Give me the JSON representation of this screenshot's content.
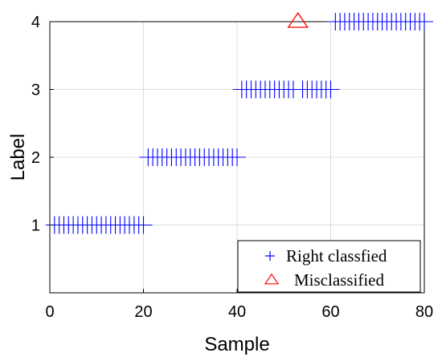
{
  "chart_data": {
    "type": "scatter",
    "xlabel": "Sample",
    "ylabel": "Label",
    "xlim": [
      0,
      80
    ],
    "ylim": [
      0,
      4
    ],
    "xticks": [
      0,
      20,
      40,
      60,
      80
    ],
    "yticks": [
      1,
      2,
      3,
      4
    ],
    "grid": true,
    "legend_position": "bottom-right",
    "series": [
      {
        "name": "Right classfied",
        "marker": "plus",
        "color": "#0000ff",
        "points": [
          [
            1,
            1
          ],
          [
            2,
            1
          ],
          [
            3,
            1
          ],
          [
            4,
            1
          ],
          [
            5,
            1
          ],
          [
            6,
            1
          ],
          [
            7,
            1
          ],
          [
            8,
            1
          ],
          [
            9,
            1
          ],
          [
            10,
            1
          ],
          [
            11,
            1
          ],
          [
            12,
            1
          ],
          [
            13,
            1
          ],
          [
            14,
            1
          ],
          [
            15,
            1
          ],
          [
            16,
            1
          ],
          [
            17,
            1
          ],
          [
            18,
            1
          ],
          [
            19,
            1
          ],
          [
            20,
            1
          ],
          [
            21,
            2
          ],
          [
            22,
            2
          ],
          [
            23,
            2
          ],
          [
            24,
            2
          ],
          [
            25,
            2
          ],
          [
            26,
            2
          ],
          [
            27,
            2
          ],
          [
            28,
            2
          ],
          [
            29,
            2
          ],
          [
            30,
            2
          ],
          [
            31,
            2
          ],
          [
            32,
            2
          ],
          [
            33,
            2
          ],
          [
            34,
            2
          ],
          [
            35,
            2
          ],
          [
            36,
            2
          ],
          [
            37,
            2
          ],
          [
            38,
            2
          ],
          [
            39,
            2
          ],
          [
            40,
            2
          ],
          [
            41,
            3
          ],
          [
            42,
            3
          ],
          [
            43,
            3
          ],
          [
            44,
            3
          ],
          [
            45,
            3
          ],
          [
            46,
            3
          ],
          [
            47,
            3
          ],
          [
            48,
            3
          ],
          [
            49,
            3
          ],
          [
            50,
            3
          ],
          [
            51,
            3
          ],
          [
            52,
            3
          ],
          [
            54,
            3
          ],
          [
            55,
            3
          ],
          [
            56,
            3
          ],
          [
            57,
            3
          ],
          [
            58,
            3
          ],
          [
            59,
            3
          ],
          [
            60,
            3
          ],
          [
            61,
            4
          ],
          [
            62,
            4
          ],
          [
            63,
            4
          ],
          [
            64,
            4
          ],
          [
            65,
            4
          ],
          [
            66,
            4
          ],
          [
            67,
            4
          ],
          [
            68,
            4
          ],
          [
            69,
            4
          ],
          [
            70,
            4
          ],
          [
            71,
            4
          ],
          [
            72,
            4
          ],
          [
            73,
            4
          ],
          [
            74,
            4
          ],
          [
            75,
            4
          ],
          [
            76,
            4
          ],
          [
            77,
            4
          ],
          [
            78,
            4
          ],
          [
            79,
            4
          ],
          [
            80,
            4
          ]
        ]
      },
      {
        "name": "Misclassified",
        "marker": "triangle",
        "color": "#ff0000",
        "points": [
          [
            53,
            4
          ]
        ]
      }
    ]
  }
}
